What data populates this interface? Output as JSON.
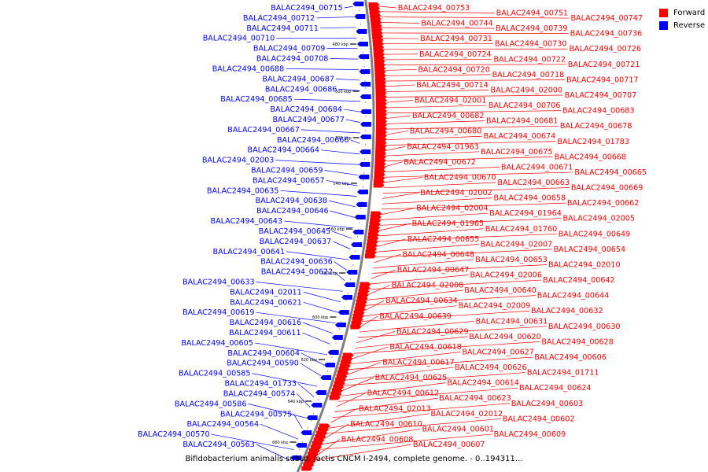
{
  "caption": "Bifidobacterium animalis subsp. lactis CNCM I-2494, complete genome. - 0..194311...",
  "legend": [
    {
      "label": "Forward",
      "color": "#ff0000"
    },
    {
      "label": "Reverse",
      "color": "#0000ff"
    }
  ],
  "colors": {
    "forward": "#ff0000",
    "reverse": "#0000ff",
    "backbone": "#808080"
  },
  "scale_ticks": [
    "480 kbp",
    "500 kbp",
    "520 kbp",
    "540 kbp",
    "560 kbp",
    "580 kbp",
    "600 kbp",
    "620 kbp",
    "640 kbp",
    "660 kbp"
  ],
  "reverse_labels": [
    "BALAC2494_00715",
    "BALAC2494_00712",
    "BALAC2494_00711",
    "BALAC2494_00710",
    "BALAC2494_00709",
    "BALAC2494_00708",
    "BALAC2494_00688",
    "BALAC2494_00687",
    "BALAC2494_00686",
    "BALAC2494_00685",
    "BALAC2494_00684",
    "BALAC2494_00677",
    "BALAC2494_00667",
    "BALAC2494_00666",
    "BALAC2494_00664",
    "BALAC2494_02003",
    "BALAC2494_00659",
    "BALAC2494_00657",
    "BALAC2494_00635",
    "BALAC2494_00638",
    "BALAC2494_00646",
    "BALAC2494_00643",
    "BALAC2494_00645",
    "BALAC2494_00637",
    "BALAC2494_00641",
    "BALAC2494_00636",
    "BALAC2494_00622",
    "BALAC2494_00633",
    "BALAC2494_02011",
    "BALAC2494_00621",
    "BALAC2494_00619",
    "BALAC2494_00616",
    "BALAC2494_00611",
    "BALAC2494_00605",
    "BALAC2494_00604",
    "BALAC2494_00590",
    "BALAC2494_00585",
    "BALAC2494_01733",
    "BALAC2494_00574",
    "BALAC2494_00586",
    "BALAC2494_00575",
    "BALAC2494_00564",
    "BALAC2494_00570",
    "BALAC2494_00563"
  ],
  "forward_labels": [
    "BALAC2494_00753",
    "BALAC2494_00751",
    "BALAC2494_00747",
    "BALAC2494_00744",
    "BALAC2494_00739",
    "BALAC2494_00736",
    "BALAC2494_00731",
    "BALAC2494_00730",
    "BALAC2494_00726",
    "BALAC2494_00724",
    "BALAC2494_00722",
    "BALAC2494_00721",
    "BALAC2494_00720",
    "BALAC2494_00718",
    "BALAC2494_00717",
    "BALAC2494_00714",
    "BALAC2494_02000",
    "BALAC2494_00707",
    "BALAC2494_02001",
    "BALAC2494_00706",
    "BALAC2494_00683",
    "BALAC2494_00682",
    "BALAC2494_00681",
    "BALAC2494_00678",
    "BALAC2494_00680",
    "BALAC2494_00674",
    "BALAC2494_01783",
    "BALAC2494_01963",
    "BALAC2494_00675",
    "BALAC2494_00668",
    "BALAC2494_00672",
    "BALAC2494_00671",
    "BALAC2494_00665",
    "BALAC2494_00670",
    "BALAC2494_00663",
    "BALAC2494_00669",
    "BALAC2494_02002",
    "BALAC2494_00658",
    "BALAC2494_00662",
    "BALAC2494_02004",
    "BALAC2494_01964",
    "BALAC2494_02005",
    "BALAC2494_01965",
    "BALAC2494_01760",
    "BALAC2494_00649",
    "BALAC2494_00655",
    "BALAC2494_02007",
    "BALAC2494_00654",
    "BALAC2494_00648",
    "BALAC2494_00653",
    "BALAC2494_02010",
    "BALAC2494_00647",
    "BALAC2494_02006",
    "BALAC2494_00642",
    "BALAC2494_02008",
    "BALAC2494_00640",
    "BALAC2494_00644",
    "BALAC2494_00634",
    "BALAC2494_02009",
    "BALAC2494_00632",
    "BALAC2494_00639",
    "BALAC2494_00631",
    "BALAC2494_00630",
    "BALAC2494_00629",
    "BALAC2494_00620",
    "BALAC2494_00628",
    "BALAC2494_00618",
    "BALAC2494_00627",
    "BALAC2494_00606",
    "BALAC2494_00617",
    "BALAC2494_00626",
    "BALAC2494_01711",
    "BALAC2494_00625",
    "BALAC2494_00614",
    "BALAC2494_00624",
    "BALAC2494_00612",
    "BALAC2494_00623",
    "BALAC2494_00603",
    "BALAC2494_02013",
    "BALAC2494_02012",
    "BALAC2494_00602",
    "BALAC2494_00610",
    "BALAC2494_00601",
    "BALAC2494_00609",
    "BALAC2494_00608",
    "BALAC2494_00607"
  ]
}
